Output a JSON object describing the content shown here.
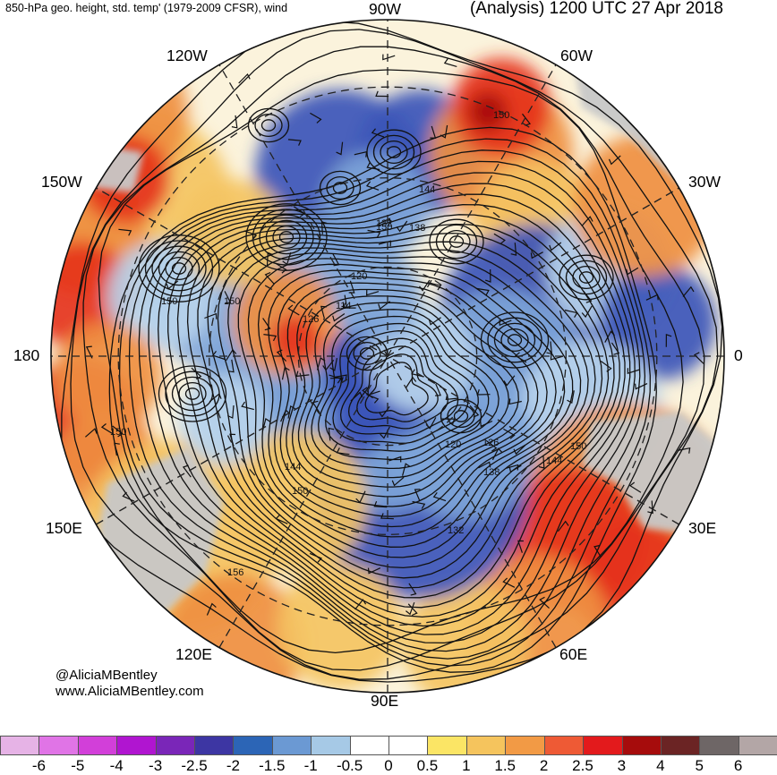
{
  "header": {
    "left_title": "850-hPa geo. height, std. temp' (1979-2009 CFSR), wind",
    "right_title": "(Analysis) 1200 UTC 27 Apr 2018"
  },
  "longitude_labels": {
    "w90": "90W",
    "w60": "60W",
    "w120": "120W",
    "w30": "30W",
    "w150": "150W",
    "zero": "0",
    "deg180": "180",
    "e150": "150E",
    "e30": "30E",
    "e120": "120E",
    "e60": "60E",
    "e90": "90E"
  },
  "contour_labels": [
    "150",
    "144",
    "138",
    "132",
    "120",
    "114",
    "126",
    "150",
    "150",
    "120",
    "126",
    "144",
    "138",
    "150",
    "132",
    "144",
    "150",
    "150",
    "156",
    "150"
  ],
  "credit": {
    "handle": "@AliciaMBentley",
    "website": "www.AliciaMBentley.com"
  },
  "colorbar": {
    "colors": [
      "#e6b3e6",
      "#e074e6",
      "#d23fd9",
      "#b015d0",
      "#7a26b8",
      "#3d36a3",
      "#2c65b6",
      "#6b99d3",
      "#a6c9e6",
      "#ffffff",
      "#ffffff",
      "#fbe565",
      "#f5c45d",
      "#f29a45",
      "#ee5a35",
      "#e31a1c",
      "#a60c0c",
      "#6b2424",
      "#6e6666",
      "#b3a6a6"
    ],
    "tick_labels": [
      "-6",
      "-5",
      "-4",
      "-3",
      "-2.5",
      "-2",
      "-1.5",
      "-1",
      "-0.5",
      "0",
      "0.5",
      "1",
      "1.5",
      "2",
      "2.5",
      "3",
      "4",
      "5",
      "6"
    ]
  },
  "palette": {
    "land_gray": "#c8c8c8",
    "cold": "#3b55b8",
    "cool": "#7ea5d9",
    "pale_cool": "#b8d4ec",
    "warm": "#f4c462",
    "orange": "#ef8f40",
    "hot": "#e5331c",
    "very_hot": "#a70d0d"
  }
}
